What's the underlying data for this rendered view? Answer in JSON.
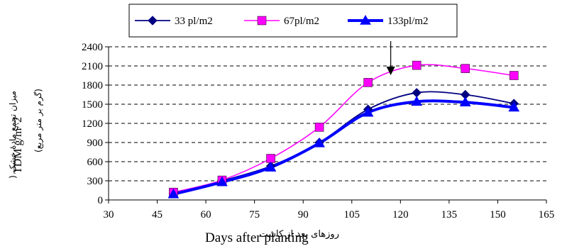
{
  "chart_data": {
    "type": "line",
    "x": [
      50,
      65,
      80,
      95,
      110,
      125,
      140,
      155
    ],
    "series": [
      {
        "name": "33 pl/m2",
        "values": [
          100,
          300,
          530,
          900,
          1420,
          1680,
          1650,
          1510
        ],
        "color": "#000080",
        "marker": "diamond",
        "marker_color": "#000080"
      },
      {
        "name": "67pl/m2",
        "values": [
          120,
          310,
          650,
          1140,
          1840,
          2110,
          2060,
          1950
        ],
        "color": "#ff00ff",
        "marker": "square",
        "marker_color": "#ff00ff"
      },
      {
        "name": "133pl/m2",
        "values": [
          90,
          280,
          510,
          890,
          1370,
          1540,
          1530,
          1450
        ],
        "color": "#0000ff",
        "marker": "triangle",
        "marker_color": "#0000ff"
      }
    ],
    "xlim": [
      30,
      165
    ],
    "xticks": [
      "30",
      "45",
      "60",
      "75",
      "90",
      "105",
      "120",
      "135",
      "150",
      "165"
    ],
    "ylim": [
      0,
      2400
    ],
    "yticks": [
      "0",
      "300",
      "600",
      "900",
      "1200",
      "1500",
      "1800",
      "2100",
      "2400"
    ],
    "xlabel": "Days after planting",
    "xlabel_fa": "روزهای بعد از کاشت",
    "ylabel": "TDM g/m^2",
    "ylabel_fa_line1": "میزان تجمع مادۀ خشک (",
    "ylabel_fa_line2": "(گرم بر متر مربع)",
    "grid": "horizontal dashed",
    "legend_position": "top",
    "annotation": {
      "type": "arrow",
      "x": 117,
      "y_from": 2400,
      "y_to": 2000
    }
  }
}
